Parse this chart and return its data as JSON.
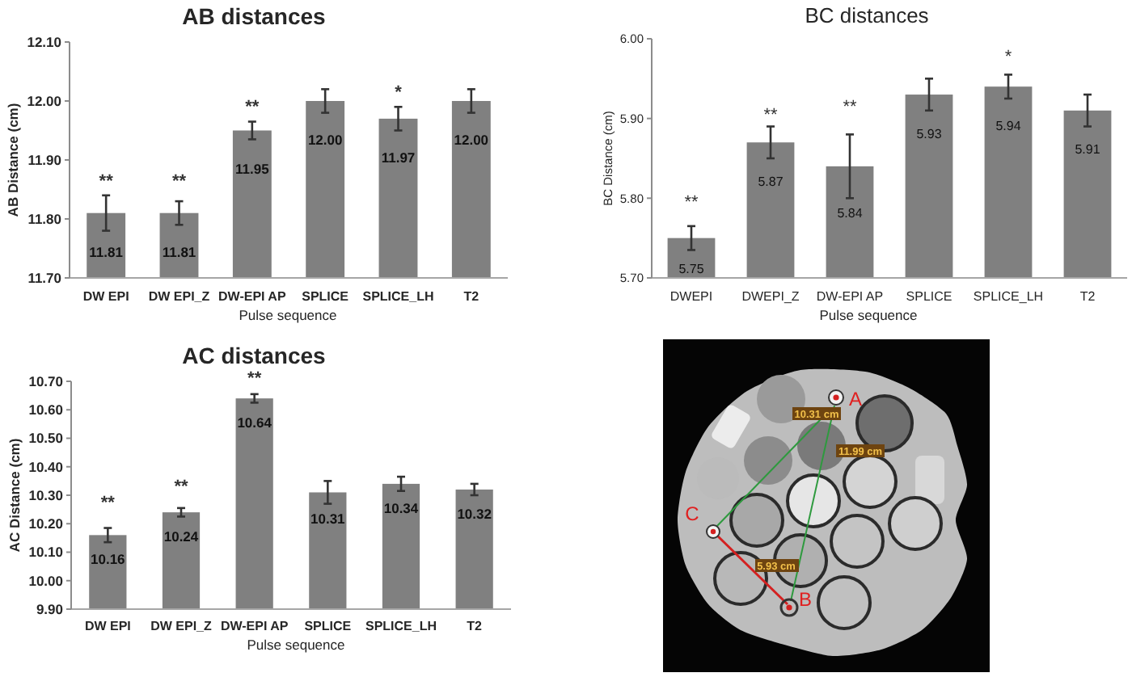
{
  "chart_data": [
    {
      "type": "bar",
      "title": "AB distances",
      "xlabel": "Pulse sequence",
      "ylabel": "AB Distance (cm)",
      "categories": [
        "DW EPI",
        "DW EPI_Z",
        "DW-EPI AP",
        "SPLICE",
        "SPLICE_LH",
        "T2"
      ],
      "values": [
        11.81,
        11.81,
        11.95,
        12.0,
        11.97,
        12.0
      ],
      "errors": [
        0.03,
        0.02,
        0.015,
        0.02,
        0.02,
        0.02
      ],
      "value_labels": [
        "11.81",
        "11.81",
        "11.95",
        "12.00",
        "11.97",
        "12.00"
      ],
      "color": "#808080",
      "ylim": [
        11.7,
        12.1
      ],
      "yticks": [
        {
          "value": 11.7,
          "label": "11.70"
        },
        {
          "value": 11.8,
          "label": "11.80"
        },
        {
          "value": 11.9,
          "label": "11.90"
        },
        {
          "value": 12.0,
          "label": "12.00"
        },
        {
          "value": 12.1,
          "label": "12.10"
        }
      ],
      "annotations": [
        "**",
        "**",
        "**",
        "*"
      ]
    },
    {
      "type": "bar",
      "title": "BC distances",
      "xlabel": "Pulse sequence",
      "ylabel": "BC Distance (cm)",
      "categories": [
        "DWEPI",
        "DWEPI_Z",
        "DW-EPI AP",
        "SPLICE",
        "SPLICE_LH",
        "T2"
      ],
      "values": [
        5.75,
        5.87,
        5.84,
        5.93,
        5.94,
        5.91
      ],
      "errors": [
        0.015,
        0.02,
        0.04,
        0.02,
        0.015,
        0.02
      ],
      "value_labels": [
        "5.75",
        "5.87",
        "5.84",
        "5.93",
        "5.94",
        "5.91"
      ],
      "color": "#808080",
      "ylim": [
        5.7,
        6.0
      ],
      "yticks": [
        {
          "value": 5.7,
          "label": "5.70"
        },
        {
          "value": 5.8,
          "label": "5.80"
        },
        {
          "value": 5.9,
          "label": "5.90"
        },
        {
          "value": 6.0,
          "label": "6.00"
        }
      ],
      "annotations": [
        "**",
        "**",
        "**",
        "*"
      ]
    },
    {
      "type": "bar",
      "title": "AC distances",
      "xlabel": "Pulse sequence",
      "ylabel": "AC Distance (cm)",
      "categories": [
        "DW EPI",
        "DW EPI_Z",
        "DW-EPI AP",
        "SPLICE",
        "SPLICE_LH",
        "T2"
      ],
      "values": [
        10.16,
        10.24,
        10.64,
        10.31,
        10.34,
        10.32
      ],
      "errors": [
        0.025,
        0.015,
        0.015,
        0.04,
        0.025,
        0.02
      ],
      "value_labels": [
        "10.16",
        "10.24",
        "10.64",
        "10.31",
        "10.34",
        "10.32"
      ],
      "color": "#808080",
      "ylim": [
        9.9,
        10.7
      ],
      "yticks": [
        {
          "value": 9.9,
          "label": "9.90"
        },
        {
          "value": 10.0,
          "label": "10.00"
        },
        {
          "value": 10.1,
          "label": "10.10"
        },
        {
          "value": 10.2,
          "label": "10.20"
        },
        {
          "value": 10.3,
          "label": "10.30"
        },
        {
          "value": 10.4,
          "label": "10.40"
        },
        {
          "value": 10.5,
          "label": "10.50"
        },
        {
          "value": 10.6,
          "label": "10.60"
        },
        {
          "value": 10.7,
          "label": "10.70"
        }
      ],
      "annotations": [
        "**",
        "**",
        "**"
      ]
    },
    {
      "type": "other",
      "annotations": [
        "A",
        "B",
        "C",
        "10.31 cm",
        "11.99 cm",
        "5.93 cm"
      ]
    }
  ]
}
